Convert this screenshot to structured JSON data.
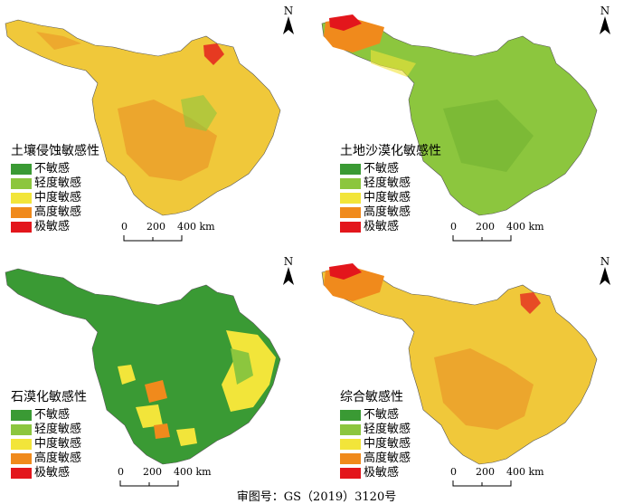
{
  "legend_categories": [
    "不敏感",
    "轻度敏感",
    "中度敏感",
    "高度敏感",
    "极敏感"
  ],
  "colors": {
    "不敏感": "#3a9a34",
    "轻度敏感": "#8cc63e",
    "中度敏感": "#f2e53a",
    "高度敏感": "#f08a1c",
    "极敏感": "#e3161c"
  },
  "panels": [
    {
      "title": "土壤侵蚀敏感性",
      "base_color": "#f0c83a",
      "overlay_color": "#ea8a22"
    },
    {
      "title": "土地沙漠化敏感性",
      "base_color": "#8cc63e",
      "overlay_color": "#6cae2e"
    },
    {
      "title": "石漠化敏感性",
      "base_color": "#3a9a34",
      "overlay_color": "#f2e53a"
    },
    {
      "title": "综合敏感性",
      "base_color": "#f0c83a",
      "overlay_color": "#ea8a22"
    }
  ],
  "north_label": "N",
  "scale": {
    "labels": [
      "0",
      "200",
      "400 km"
    ]
  },
  "footer": "审图号：GS（2019）3120号"
}
